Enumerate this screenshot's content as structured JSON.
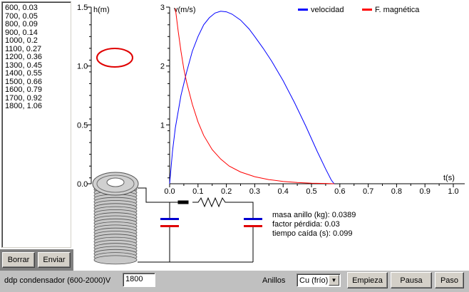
{
  "list": {
    "rows": [
      "600, 0.03",
      "700, 0.05",
      "800, 0.09",
      "900, 0.14",
      "1000, 0.2",
      "1100, 0.27",
      "1200, 0.36",
      "1300, 0.45",
      "1400, 0.55",
      "1500, 0.66",
      "1600, 0.79",
      "1700, 0.92",
      "1800, 1.06"
    ]
  },
  "buttons": {
    "borrar": "Borrar",
    "enviar": "Enviar",
    "empieza": "Empieza",
    "pausa": "Pausa",
    "paso": "Paso"
  },
  "bottom": {
    "ddp_label": "ddp condensador (600-2000)V",
    "ddp_value": "1800",
    "anillos_label": "Anillos",
    "anillos_selected": "Cu (frío)"
  },
  "info": {
    "masa": "masa anillo (kg): 0.0389",
    "factor": "factor pérdida: 0.03",
    "tiempo": "tiempo caída (s): 0.099"
  },
  "h_axis": {
    "label": "h(m)",
    "ticks": [
      "1.5",
      "1.0",
      "0.5",
      "0.0"
    ]
  },
  "chart_data": {
    "type": "line",
    "xlabel": "t(s)",
    "ylabel": "v(m/s)",
    "xlim": [
      0,
      1.0
    ],
    "ylim": [
      0,
      3
    ],
    "x_ticks": [
      "0.0",
      "0.1",
      "0.2",
      "0.3",
      "0.4",
      "0.5",
      "0.6",
      "0.7",
      "0.8",
      "0.9",
      "1.0"
    ],
    "y_ticks": [
      "3",
      "2",
      "1"
    ],
    "legend_position": "top-right",
    "series": [
      {
        "name": "velocidad",
        "color": "#0000ff",
        "x": [
          0,
          0.01,
          0.02,
          0.04,
          0.06,
          0.08,
          0.1,
          0.12,
          0.14,
          0.16,
          0.18,
          0.2,
          0.22,
          0.25,
          0.28,
          0.3,
          0.33,
          0.36,
          0.4,
          0.44,
          0.48,
          0.52,
          0.55,
          0.57,
          0.58
        ],
        "y": [
          0,
          0.55,
          0.95,
          1.5,
          1.9,
          2.25,
          2.5,
          2.7,
          2.82,
          2.9,
          2.93,
          2.92,
          2.88,
          2.78,
          2.63,
          2.5,
          2.3,
          2.08,
          1.75,
          1.38,
          0.98,
          0.55,
          0.25,
          0.06,
          0
        ]
      },
      {
        "name": "F. magnética",
        "color": "#ff0000",
        "x": [
          0.02,
          0.03,
          0.04,
          0.05,
          0.06,
          0.08,
          0.1,
          0.12,
          0.15,
          0.18,
          0.21,
          0.25,
          0.3,
          0.35,
          0.4,
          0.45,
          0.5,
          0.55,
          0.58
        ],
        "y": [
          2.98,
          2.6,
          2.25,
          1.95,
          1.72,
          1.35,
          1.05,
          0.82,
          0.58,
          0.42,
          0.3,
          0.2,
          0.12,
          0.07,
          0.04,
          0.02,
          0.01,
          0.005,
          0
        ]
      }
    ]
  }
}
